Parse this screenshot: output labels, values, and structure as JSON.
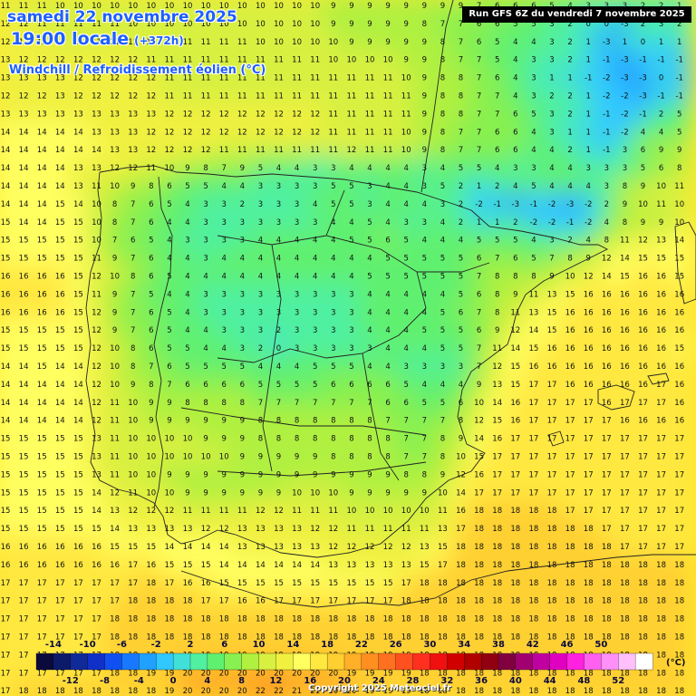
{
  "header": {
    "date": "samedi 22 novembre 2025",
    "time": "19:00 locale",
    "lead": "(+372h)",
    "parameter": "Windchill / Refroidissement éolien (°C)"
  },
  "run_info": "Run GFS 6Z du vendredi 7 novembre 2025",
  "credit": "Copyright 2025 Meteociel.fr",
  "legend": {
    "unit": "(°C)",
    "top_labels": [
      "-14",
      "-10",
      "-6",
      "-2",
      "2",
      "6",
      "10",
      "14",
      "18",
      "22",
      "26",
      "30",
      "34",
      "38",
      "42",
      "46",
      "50"
    ],
    "bottom_labels": [
      "-12",
      "-8",
      "-4",
      "0",
      "4",
      "8",
      "12",
      "16",
      "20",
      "24",
      "28",
      "32",
      "36",
      "40",
      "44",
      "48",
      "52"
    ],
    "colors": [
      "#0a0a3c",
      "#0c1a6a",
      "#102a9a",
      "#1030c8",
      "#1050f0",
      "#1878ff",
      "#20a0ff",
      "#30c8ff",
      "#40e0d8",
      "#50f0a0",
      "#60f070",
      "#88f050",
      "#b0f040",
      "#d8f040",
      "#f0f040",
      "#ffff60",
      "#ffe840",
      "#ffd030",
      "#ffb028",
      "#ff9020",
      "#ff7020",
      "#ff5020",
      "#ff3020",
      "#f01010",
      "#d00000",
      "#b00000",
      "#900010",
      "#800040",
      "#a00070",
      "#c000a0",
      "#e000c0",
      "#ff20e0",
      "#ff60f0",
      "#ff90f8",
      "#ffc0fc",
      "#ffffff"
    ]
  },
  "grid_rows": [
    "11 11 11 10 10 10 10 10 10 10 10 10 10 10 10 10 10 10 9 9 9 9 9 9 9 9 7 6 6 6 5 4 3 3 3 2 2 1",
    "12 12 11 11 11 11 11 10 10 10 10 10 10 10 10 10 10 10 9 9 9 9 9 8 7 7 6 6 5 5 3 2 0 0 -3 2 3 2",
    "12 12 12 11 11 11 11 11 11 11 11 11 11 11 10 10 10 10 10 9 9 9 9 9 8 7 6 5 4 4 3 2 1 -3 1 0 1 1",
    "13 12 12 12 12 12 12 12 11 11 11 11 11 11 11 11 11 11 10 10 10 10 9 9 8 7 7 5 4 3 3 2 1 -1 -3 -1 -1 -1",
    "13 13 13 13 12 12 12 12 12 11 11 11 11 11 11 11 11 11 11 11 11 11 10 9 8 8 7 6 4 3 1 1 -1 -2 -3 -3 0 -1",
    "12 12 12 13 12 12 12 12 12 11 11 11 11 11 11 11 11 11 11 11 11 11 11 9 8 8 7 7 4 3 2 2 1 -2 -2 -3 -1 -1",
    "13 13 13 13 13 13 13 13 13 12 12 12 12 12 12 12 12 12 11 11 11 11 11 9 8 8 7 7 6 5 3 2 1 -1 -2 -1 2 5",
    "14 14 14 14 14 13 13 13 12 12 12 12 12 12 12 12 12 12 11 11 11 11 10 9 8 7 7 6 6 4 3 1 1 -1 -2 4 4 5",
    "14 14 14 14 14 14 13 13 12 12 12 12 11 11 11 11 11 11 11 12 11 11 10 9 8 7 7 6 6 4 4 2 1 -1 3 6 9 9",
    "14 14 14 14 13 13 12 12 11 10 9 8 7 9 5 4 4 3 3 4 4 4 4 3 4 5 5 4 3 3 4 4 3 3 3 5 6 8",
    "14 14 14 14 13 11 10 9 8 6 5 5 4 4 3 3 3 3 5 5 3 4 4 3 5 2 1 2 4 5 4 4 4 3 8 9 10 11",
    "14 14 14 15 14 10 8 7 6 5 4 3 3 2 3 3 3 4 5 5 3 4 4 4 3 2 -2 -1 -3 -1 -2 -3 -2 2 9 10 11 10",
    "15 14 14 15 15 10 8 7 6 4 4 3 3 3 3 3 3 3 4 4 5 4 3 3 4 2 1 1 2 -2 -2 -1 -2 4 8 9 9 10",
    "15 15 15 15 15 10 7 6 5 4 3 3 3 3 4 4 4 4 4 5 5 6 5 4 4 4 5 5 5 4 3 2 4 8 11 12 13 14",
    "15 15 15 15 15 11 9 7 6 4 4 3 4 4 4 4 4 4 4 4 4 5 5 5 5 5 6 7 6 5 7 8 9 12 14 15 15 15",
    "16 16 16 16 15 12 10 8 6 5 4 4 4 4 4 4 4 4 4 4 5 5 5 5 5 5 7 8 8 8 9 10 12 14 15 16 16 15",
    "16 16 16 16 15 11 9 7 5 4 4 3 3 3 3 3 3 3 3 3 4 4 4 4 4 5 6 8 9 11 13 15 16 16 16 16 16 16",
    "16 16 16 16 15 12 9 7 6 5 4 3 3 3 3 3 3 3 3 3 4 4 4 4 5 6 7 8 11 13 15 16 16 16 16 16 16 16",
    "15 15 15 15 15 12 9 7 6 5 4 4 3 3 3 2 3 3 3 3 4 4 4 5 5 5 6 9 12 14 15 16 16 16 16 16 16 16",
    "15 15 15 15 15 12 10 8 6 5 5 4 4 3 2 0 3 3 3 3 3 4 4 4 5 5 7 11 14 15 16 16 16 16 16 16 16 15",
    "14 14 15 14 14 12 10 8 7 6 5 5 5 5 4 4 4 5 5 5 4 4 3 3 3 3 7 12 15 16 16 16 16 16 16 16 16 16",
    "14 14 14 14 14 12 10 9 8 7 6 6 6 6 5 5 5 5 6 6 6 6 5 4 4 4 9 13 15 17 17 16 16 16 16 16 17 16",
    "14 14 14 14 14 12 11 10 9 9 8 8 8 8 7 7 7 7 7 7 7 6 6 5 5 6 10 14 16 17 17 17 17 16 17 17 17 16",
    "14 14 14 14 14 12 11 10 9 9 9 9 9 9 8 8 8 8 8 8 8 7 7 7 7 8 12 15 16 17 17 17 17 17 16 16 16 16",
    "15 15 15 15 15 13 11 10 10 10 10 9 9 9 8 8 8 8 8 8 8 8 7 7 8 9 14 16 17 17 17 17 17 17 17 17 17 17",
    "15 15 15 15 15 13 11 10 10 10 10 10 10 9 9 9 9 9 8 8 8 8 7 7 8 10 15 17 17 17 17 17 17 17 17 17 17 17",
    "15 15 15 15 15 13 11 10 10 9 9 9 9 9 9 9 9 9 9 9 9 9 8 8 9 12 16 17 17 17 17 17 17 17 17 17 17 17",
    "15 15 15 15 15 14 12 11 10 10 9 9 9 9 9 9 10 10 10 9 9 9 9 9 10 14 17 17 17 17 17 17 17 17 17 17 17 17",
    "15 15 15 15 15 14 13 12 12 12 11 11 11 11 12 12 11 11 11 10 10 10 10 10 11 16 18 18 18 18 18 17 17 17 17 17 17 17",
    "15 15 15 15 15 15 14 13 13 13 13 12 12 13 13 13 13 12 12 11 11 11 11 11 13 17 18 18 18 18 18 18 18 17 17 17 17 17",
    "16 16 16 16 16 16 15 15 15 14 14 14 14 13 13 13 13 13 12 12 12 12 12 13 15 18 18 18 18 18 18 18 18 18 17 17 17 17",
    "16 16 16 16 16 16 16 17 16 15 15 15 14 14 14 14 14 14 13 13 13 13 13 15 17 18 18 18 18 18 18 18 18 18 18 18 18 18",
    "17 17 17 17 17 17 17 17 18 17 16 16 15 15 15 15 15 15 15 15 15 15 17 18 18 18 18 18 18 18 18 18 18 18 18 18 18 18",
    "17 17 17 17 17 17 17 18 18 18 18 17 17 16 16 17 17 17 17 17 17 17 18 18 18 18 18 18 18 18 18 18 18 18 18 18 18 18",
    "17 17 17 17 17 17 18 18 18 18 18 18 18 18 18 18 18 18 18 18 18 18 18 18 18 18 18 18 18 18 18 18 18 18 18 18 18 18",
    "17 17 17 17 17 17 18 18 18 18 18 18 18 18 18 18 18 18 18 18 18 18 18 18 18 18 18 18 18 18 18 18 18 18 18 18 18 18",
    "17 17 17 17 17 17 18 18 18 19 19 19 19 19 19 19 19 19 19 19 19 19 19 18 18 18 18 18 18 18 18 18 18 18 18 18 18 18",
    "17 17 17 17 17 17 18 18 19 19 20 20 20 20 20 20 20 20 20 19 19 19 19 18 18 18 18 18 18 18 18 18 18 18 18 18 18 18",
    "17 18 18 18 18 18 18 18 18 19 20 20 20 20 22 22 21 21 20 20 19 19 19 18 18 18 18 18 18 18 18 18 18 18 18 18 18 18"
  ]
}
